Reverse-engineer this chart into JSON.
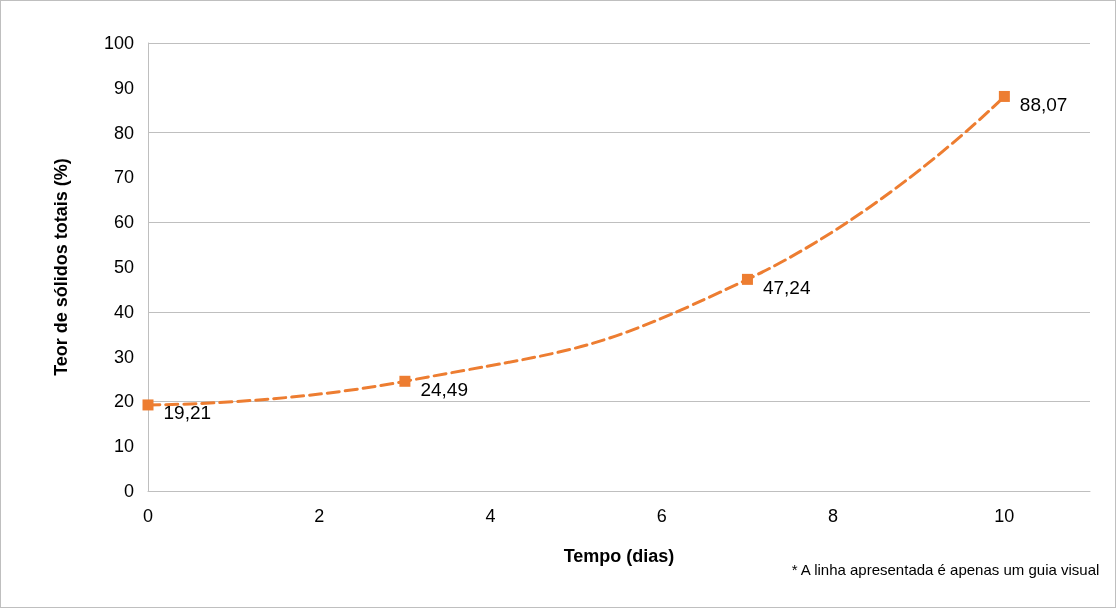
{
  "chart_data": {
    "type": "line",
    "xlabel": "Tempo (dias)",
    "ylabel": "Teor de sólidos totais (%)",
    "x": [
      0,
      3,
      7,
      10
    ],
    "series": [
      {
        "color": "#ed7d31",
        "values": [
          19.21,
          24.49,
          47.24,
          88.07
        ],
        "value_labels": [
          "19,21",
          "24,49",
          "47,24",
          "88,07"
        ]
      }
    ],
    "xlim": [
      0,
      11
    ],
    "xticks": [
      0,
      2,
      4,
      6,
      8,
      10
    ],
    "ylim": [
      0,
      100
    ],
    "yticks": [
      0,
      10,
      20,
      30,
      40,
      50,
      60,
      70,
      80,
      90,
      100
    ],
    "grid": "y",
    "marker": "square",
    "line_style": "dashed",
    "annotations": [
      "* A linha apresentada é apenas um guia visual"
    ]
  }
}
